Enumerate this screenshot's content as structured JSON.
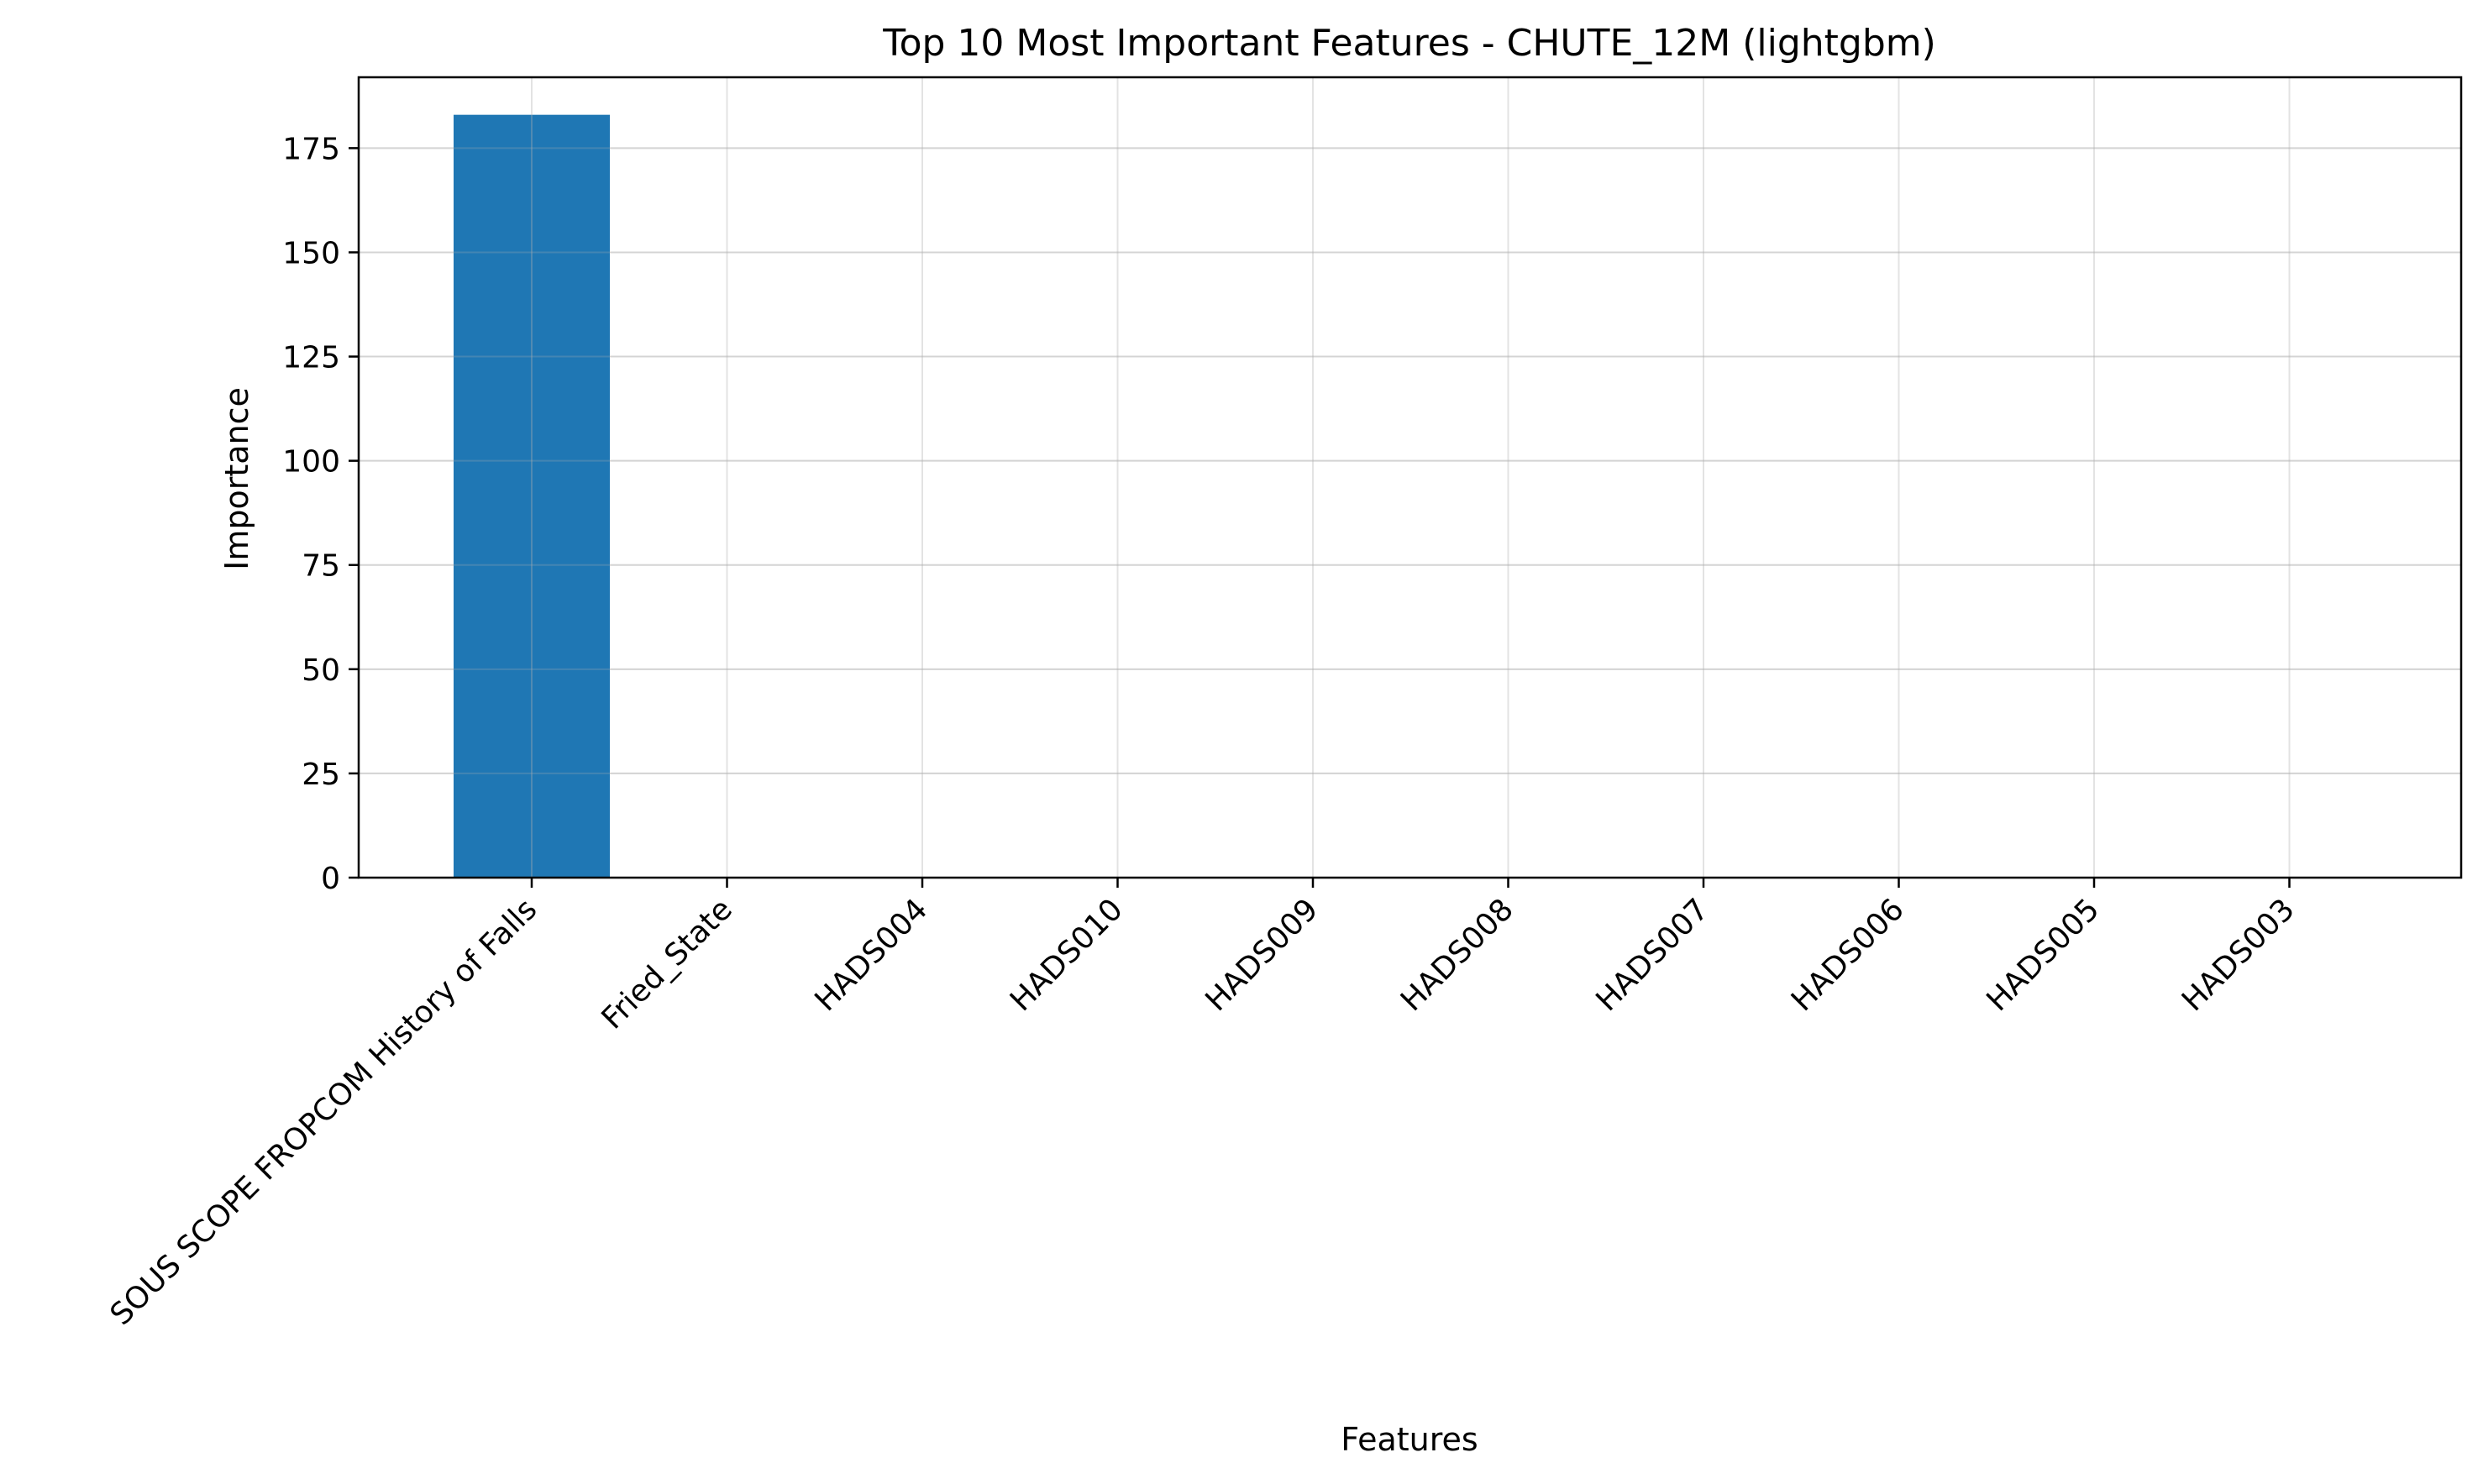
{
  "chart_data": {
    "type": "bar",
    "title": "Top 10 Most Important Features - CHUTE_12M (lightgbm)",
    "xlabel": "Features",
    "ylabel": "Importance",
    "categories": [
      "SOUS SCOPE FROPCOM History of Falls",
      "Fried_State",
      "HADS004",
      "HADS010",
      "HADS009",
      "HADS008",
      "HADS007",
      "HADS006",
      "HADS005",
      "HADS003"
    ],
    "values": [
      183,
      0,
      0,
      0,
      0,
      0,
      0,
      0,
      0,
      0
    ],
    "ylim": [
      0,
      192
    ],
    "yticks": [
      0,
      25,
      50,
      75,
      100,
      125,
      150,
      175
    ],
    "grid": true,
    "legend": "none",
    "colors": {
      "bar": "#1f77b4",
      "grid": "#e0e0e0",
      "axes": "#000000"
    }
  }
}
